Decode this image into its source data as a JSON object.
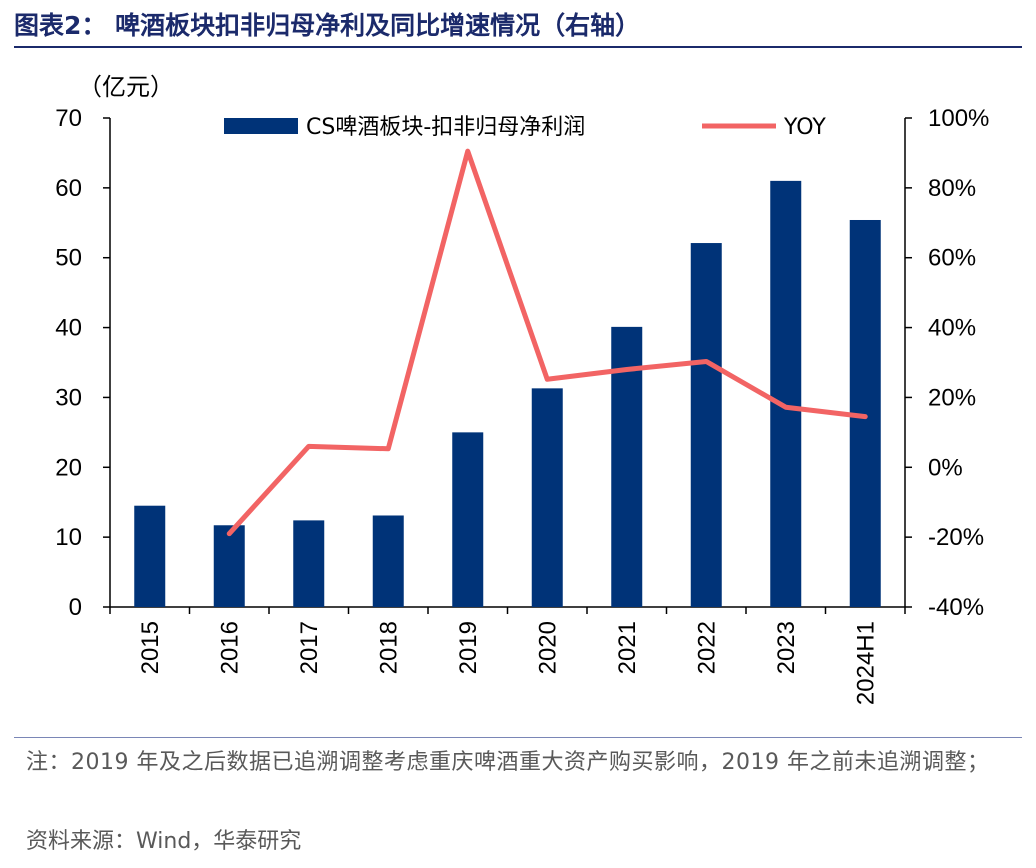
{
  "header": {
    "title": "图表2：  啤酒板块扣非归母净利及同比增速情况（右轴）"
  },
  "footer": {
    "note": "注：2019 年及之后数据已追溯调整考虑重庆啤酒重大资产购买影响，2019 年之前未追溯调整；",
    "source": "资料来源：Wind，华泰研究"
  },
  "colors": {
    "bar": "#003378",
    "line": "#f26464",
    "title": "#1b2a6b"
  },
  "chart_data": {
    "type": "bar+line",
    "unit_label": "（亿元）",
    "categories": [
      "2015",
      "2016",
      "2017",
      "2018",
      "2019",
      "2020",
      "2021",
      "2022",
      "2023",
      "2024H1"
    ],
    "series": [
      {
        "name": "CS啤酒板块-扣非归母净利润",
        "type": "bar",
        "axis": "left",
        "values": [
          14.5,
          11.7,
          12.4,
          13.1,
          25.0,
          31.3,
          40.1,
          52.1,
          61.0,
          55.4
        ]
      },
      {
        "name": "YOY",
        "type": "line",
        "axis": "right",
        "values": [
          null,
          -19.0,
          6.0,
          5.3,
          90.5,
          25.2,
          28.0,
          30.3,
          17.2,
          14.5
        ]
      }
    ],
    "left_axis": {
      "min": 0,
      "max": 70,
      "ticks": [
        "0",
        "10",
        "20",
        "30",
        "40",
        "50",
        "60",
        "70"
      ]
    },
    "right_axis": {
      "min": -40,
      "max": 100,
      "ticks": [
        "-40%",
        "-20%",
        "0%",
        "20%",
        "40%",
        "60%",
        "80%",
        "100%"
      ]
    },
    "legend_position": "top"
  }
}
